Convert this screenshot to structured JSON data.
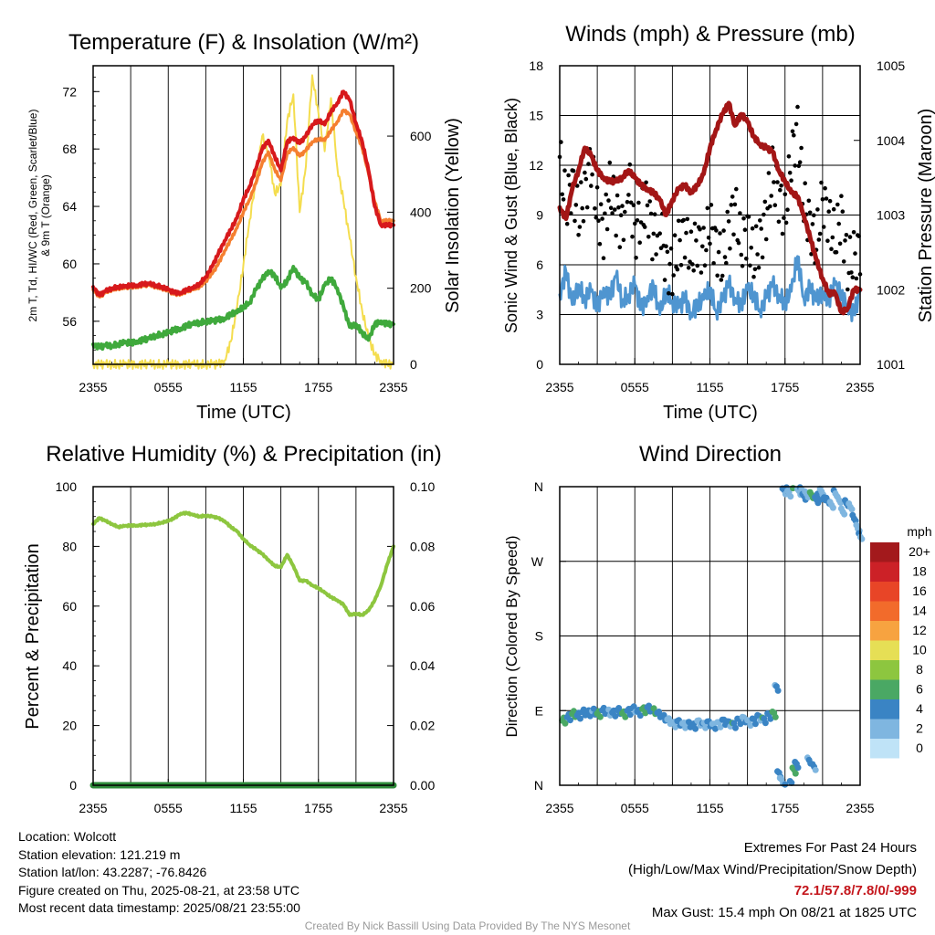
{
  "colors": {
    "t2m": "#d7191c",
    "hiwc": "#2db24b",
    "td": "#3fa93c",
    "t9m": "#f57f30",
    "solar": "#f4dd4f",
    "wind": "#4f95d0",
    "gust": "#000000",
    "pressure": "#a31616",
    "rh": "#8dc63f",
    "precip": "#2e8b3a"
  },
  "panels": {
    "temp": {
      "title": "Temperature (F) & Insolation (W/m²)",
      "ylabel_lines": [
        "2m T, Td, HI/WC (Red, Green, Scarlet/Blue)",
        "& 9m T (Orange)"
      ],
      "y2label": "Solar Insolation (Yellow)",
      "xlabel": "Time (UTC)",
      "yticks": [
        "56",
        "60",
        "64",
        "68",
        "72"
      ],
      "y2ticks": [
        "0",
        "200",
        "400",
        "600"
      ],
      "xticks": [
        "2355",
        "0555",
        "1155",
        "1755",
        "2355"
      ]
    },
    "wind": {
      "title": "Winds (mph) & Pressure (mb)",
      "ylabel": "Sonic Wind & Gust (Blue, Black)",
      "y2label": "Station Pressure (Maroon)",
      "xlabel": "Time (UTC)",
      "yticks": [
        "0",
        "3",
        "6",
        "9",
        "12",
        "15",
        "18"
      ],
      "y2ticks": [
        "1001",
        "1002",
        "1003",
        "1004",
        "1005"
      ],
      "xticks": [
        "2355",
        "0555",
        "1155",
        "1755",
        "2355"
      ]
    },
    "rh": {
      "title": "Relative Humidity (%) & Precipitation (in)",
      "ylabel": "Percent & Precipitation",
      "yticks": [
        "0",
        "20",
        "40",
        "60",
        "80",
        "100"
      ],
      "y2ticks": [
        "0.00",
        "0.02",
        "0.04",
        "0.06",
        "0.08",
        "0.10"
      ],
      "xticks": [
        "2355",
        "0555",
        "1155",
        "1755",
        "2355"
      ]
    },
    "dir": {
      "title": "Wind Direction",
      "ylabel": "Direction (Colored By Speed)",
      "yticks": [
        "N",
        "E",
        "S",
        "W",
        "N"
      ],
      "xticks": [
        "2355",
        "0555",
        "1155",
        "1755",
        "2355"
      ],
      "legend_title": "mph",
      "legend_labels": [
        "20+",
        "18",
        "16",
        "14",
        "12",
        "10",
        "8",
        "6",
        "4",
        "2",
        "0"
      ],
      "legend_colors": [
        "#a3191c",
        "#cc2127",
        "#e84527",
        "#f26b2b",
        "#f7a340",
        "#e6df55",
        "#8dc63f",
        "#4aa864",
        "#3a84c4",
        "#7fb6e0",
        "#bfe3f7"
      ]
    }
  },
  "chart_data": [
    {
      "type": "line",
      "title": "Temperature (F) & Insolation (W/m²)",
      "xlabel": "Time (UTC)",
      "ylabel": "2m T, Td, HI/WC (Red, Green, Scarlet/Blue) & 9m T (Orange)",
      "y2label": "Solar Insolation (Yellow)",
      "ylim": [
        53,
        73.8
      ],
      "y2lim": [
        0,
        785
      ],
      "xlim": [
        0,
        24
      ],
      "x": [
        0,
        0.5,
        1,
        1.5,
        2,
        2.5,
        3,
        3.5,
        4,
        4.5,
        5,
        5.5,
        6,
        6.5,
        7,
        7.5,
        8,
        8.5,
        9,
        9.5,
        10,
        10.5,
        11,
        11.5,
        12,
        12.5,
        13,
        13.5,
        14,
        14.5,
        15,
        15.5,
        16,
        16.5,
        17,
        17.5,
        18,
        18.5,
        19,
        19.5,
        20,
        20.5,
        21,
        21.5,
        22,
        22.5,
        23,
        23.5,
        24
      ],
      "series": [
        {
          "name": "2m T",
          "axis": "left",
          "color": "t2m",
          "values": [
            58.4,
            57.8,
            58.1,
            58.3,
            58.4,
            58.4,
            58.5,
            58.5,
            58.6,
            58.6,
            58.5,
            58.4,
            58.2,
            58.0,
            58.0,
            58.2,
            58.3,
            58.6,
            59.1,
            59.8,
            60.7,
            61.6,
            62.4,
            63.2,
            64.5,
            65.4,
            66.6,
            68.0,
            68.6,
            67.5,
            66.5,
            68.5,
            68.8,
            68.4,
            68.9,
            69.7,
            70.0,
            69.7,
            70.6,
            71.2,
            72.0,
            71.4,
            69.8,
            68.5,
            66.5,
            64.0,
            62.7,
            62.7,
            62.7
          ]
        },
        {
          "name": "9m T",
          "axis": "left",
          "color": "t9m",
          "values": [
            58.2,
            57.7,
            58.0,
            58.2,
            58.3,
            58.3,
            58.4,
            58.4,
            58.5,
            58.5,
            58.4,
            58.3,
            58.1,
            57.9,
            57.9,
            58.1,
            58.2,
            58.4,
            58.8,
            59.3,
            60.0,
            60.9,
            61.7,
            62.5,
            63.6,
            64.5,
            65.6,
            67.0,
            67.8,
            66.6,
            65.8,
            67.7,
            68.1,
            67.5,
            67.9,
            68.5,
            68.7,
            68.6,
            69.3,
            69.9,
            70.7,
            70.4,
            69.2,
            68.1,
            66.3,
            64.3,
            63.0,
            63.0,
            63.0
          ]
        },
        {
          "name": "Td",
          "axis": "left",
          "color": "td",
          "values": [
            54.4,
            54.2,
            54.3,
            54.3,
            54.4,
            54.5,
            54.5,
            54.6,
            54.7,
            54.8,
            55.0,
            55.1,
            55.2,
            55.4,
            55.5,
            55.7,
            55.8,
            55.9,
            56.0,
            56.0,
            56.1,
            56.2,
            56.5,
            56.6,
            57.0,
            57.3,
            58.2,
            58.9,
            59.5,
            59.2,
            58.3,
            58.8,
            59.8,
            59.0,
            58.7,
            57.9,
            57.5,
            58.5,
            59.0,
            58.3,
            57.0,
            55.6,
            55.8,
            55.2,
            54.7,
            55.8,
            56.0,
            55.8,
            55.8
          ]
        },
        {
          "name": "Solar Insolation",
          "axis": "right",
          "color": "solar",
          "values": [
            0,
            0,
            0,
            0,
            0,
            0,
            0,
            0,
            0,
            0,
            0,
            0,
            0,
            0,
            0,
            0,
            0,
            0,
            0,
            0,
            0,
            10,
            60,
            150,
            260,
            380,
            480,
            600,
            560,
            450,
            470,
            640,
            710,
            400,
            520,
            760,
            660,
            560,
            700,
            520,
            430,
            330,
            230,
            140,
            70,
            25,
            10,
            0,
            0
          ]
        }
      ]
    },
    {
      "type": "line",
      "title": "Winds (mph) & Pressure (mb)",
      "xlabel": "Time (UTC)",
      "ylabel": "Sonic Wind & Gust (Blue, Black)",
      "y2label": "Station Pressure (Maroon)",
      "ylim": [
        0,
        18
      ],
      "y2lim": [
        1001,
        1005
      ],
      "xlim": [
        0,
        24
      ],
      "x": [
        0,
        0.5,
        1,
        1.5,
        2,
        2.5,
        3,
        3.5,
        4,
        4.5,
        5,
        5.5,
        6,
        6.5,
        7,
        7.5,
        8,
        8.5,
        9,
        9.5,
        10,
        10.5,
        11,
        11.5,
        12,
        12.5,
        13,
        13.5,
        14,
        14.5,
        15,
        15.5,
        16,
        16.5,
        17,
        17.5,
        18,
        18.5,
        19,
        19.5,
        20,
        20.5,
        21,
        21.5,
        22,
        22.5,
        23,
        23.5,
        24
      ],
      "series": [
        {
          "name": "Station Pressure",
          "axis": "right",
          "color": "pressure",
          "values": [
            1003.1,
            1002.95,
            1003.35,
            1003.6,
            1003.9,
            1003.8,
            1003.6,
            1003.5,
            1003.45,
            1003.45,
            1003.5,
            1003.6,
            1003.5,
            1003.4,
            1003.35,
            1003.3,
            1003.2,
            1003.0,
            1003.2,
            1003.35,
            1003.4,
            1003.3,
            1003.4,
            1003.55,
            1003.9,
            1004.15,
            1004.35,
            1004.5,
            1004.2,
            1004.35,
            1004.25,
            1004.05,
            1003.95,
            1003.9,
            1003.85,
            1003.6,
            1003.45,
            1003.3,
            1003.25,
            1003.0,
            1002.7,
            1002.4,
            1002.15,
            1001.95,
            1001.95,
            1001.7,
            1001.75,
            1002.0,
            1002.0
          ]
        },
        {
          "name": "Sonic Wind",
          "axis": "left",
          "color": "wind",
          "values": [
            4.2,
            5.6,
            3.6,
            4.8,
            3.9,
            4.4,
            3.4,
            4.6,
            4.0,
            5.3,
            3.8,
            4.2,
            4.8,
            3.3,
            4.1,
            4.7,
            3.0,
            4.5,
            3.8,
            3.4,
            4.0,
            3.1,
            3.6,
            3.9,
            4.6,
            3.2,
            3.8,
            4.9,
            4.0,
            3.6,
            4.5,
            4.2,
            3.3,
            4.0,
            4.8,
            4.2,
            3.7,
            4.4,
            6.5,
            4.0,
            4.6,
            3.8,
            4.4,
            3.9,
            4.8,
            4.1,
            3.6,
            3.0,
            4.4
          ]
        },
        {
          "name": "Gust",
          "axis": "left",
          "color": "gust",
          "values": [
            12.5,
            9.5,
            11.0,
            8.8,
            10.3,
            12.2,
            9.1,
            8.0,
            10.6,
            9.2,
            8.3,
            11.2,
            7.8,
            8.9,
            9.6,
            7.5,
            8.6,
            6.1,
            5.5,
            7.2,
            8.0,
            6.4,
            7.5,
            6.8,
            8.5,
            7.1,
            6.0,
            8.3,
            9.6,
            7.0,
            8.2,
            6.3,
            7.4,
            9.0,
            11.5,
            10.2,
            8.7,
            12.5,
            14.3,
            9.6,
            8.5,
            7.2,
            10.0,
            8.8,
            7.5,
            9.1,
            5.8,
            6.5,
            7.0
          ]
        }
      ]
    },
    {
      "type": "line",
      "title": "Relative Humidity (%) & Precipitation (in)",
      "ylabel": "Percent & Precipitation",
      "ylim": [
        0,
        100
      ],
      "y2lim": [
        0,
        0.1
      ],
      "xlim": [
        0,
        24
      ],
      "x": [
        0,
        0.5,
        1,
        1.5,
        2,
        2.5,
        3,
        3.5,
        4,
        4.5,
        5,
        5.5,
        6,
        6.5,
        7,
        7.5,
        8,
        8.5,
        9,
        9.5,
        10,
        10.5,
        11,
        11.5,
        12,
        12.5,
        13,
        13.5,
        14,
        14.5,
        15,
        15.5,
        16,
        16.5,
        17,
        17.5,
        18,
        18.5,
        19,
        19.5,
        20,
        20.5,
        21,
        21.5,
        22,
        22.5,
        23,
        23.5,
        24
      ],
      "series": [
        {
          "name": "Relative Humidity",
          "axis": "left",
          "color": "rh",
          "values": [
            87.5,
            89.5,
            88.5,
            87.5,
            86.5,
            86.8,
            87.0,
            87.0,
            87.2,
            87.2,
            87.5,
            88.0,
            88.5,
            89.5,
            91.0,
            91.2,
            90.5,
            90.0,
            90.3,
            90.0,
            89.5,
            88.5,
            86.5,
            85.0,
            82.5,
            80.5,
            79.0,
            77.5,
            75.5,
            73.5,
            73.0,
            77.2,
            73.5,
            68.5,
            68.5,
            67.0,
            66.0,
            64.5,
            63.0,
            62.0,
            60.5,
            57.0,
            57.5,
            57.0,
            58.5,
            62.0,
            67.0,
            74.0,
            80.0
          ]
        },
        {
          "name": "Precipitation",
          "axis": "right",
          "color": "precip",
          "values": [
            0,
            0,
            0,
            0,
            0,
            0,
            0,
            0,
            0,
            0,
            0,
            0,
            0,
            0,
            0,
            0,
            0,
            0,
            0,
            0,
            0,
            0,
            0,
            0,
            0,
            0,
            0,
            0,
            0,
            0,
            0,
            0,
            0,
            0,
            0,
            0,
            0,
            0,
            0,
            0,
            0,
            0,
            0,
            0,
            0,
            0,
            0,
            0,
            0
          ]
        }
      ]
    },
    {
      "type": "scatter",
      "title": "Wind Direction",
      "ylabel": "Direction (Colored By Speed)",
      "xlim": [
        0,
        24
      ],
      "ylim": [
        0,
        360
      ],
      "x": [
        0.2,
        0.6,
        1.0,
        1.4,
        1.8,
        2.2,
        2.6,
        3.0,
        3.4,
        3.8,
        4.2,
        4.6,
        5.0,
        5.4,
        5.8,
        6.2,
        6.6,
        7.0,
        7.4,
        7.8,
        8.2,
        8.6,
        9.0,
        9.4,
        9.8,
        10.2,
        10.6,
        11.0,
        11.4,
        11.8,
        12.2,
        12.6,
        13.0,
        13.4,
        13.8,
        14.2,
        14.6,
        15.0,
        15.4,
        15.8,
        16.2,
        16.6,
        17.0,
        17.2,
        17.4,
        17.6,
        17.8,
        18.0,
        18.2,
        18.4,
        18.6,
        18.8,
        19.0,
        19.2,
        19.4,
        19.6,
        19.8,
        20.0,
        20.2,
        20.4,
        20.6,
        20.8,
        21.0,
        21.3,
        21.6,
        21.9,
        22.2,
        22.5,
        22.8,
        23.1,
        23.4,
        23.7,
        23.9
      ],
      "series": [
        {
          "name": "Wind Direction",
          "values": [
            78,
            82,
            86,
            84,
            88,
            87,
            89,
            86,
            90,
            88,
            87,
            90,
            86,
            89,
            92,
            88,
            91,
            93,
            90,
            86,
            82,
            78,
            74,
            76,
            73,
            74,
            72,
            76,
            73,
            75,
            72,
            74,
            77,
            75,
            73,
            78,
            80,
            76,
            78,
            82,
            79,
            84,
            86,
            118,
            14,
            6,
            355,
            358,
            352,
            2,
            18,
            25,
            354,
            356,
            348,
            351,
            30,
            350,
            22,
            344,
            348,
            354,
            347,
            343,
            338,
            352,
            344,
            330,
            340,
            336,
            322,
            310,
            300
          ]
        },
        {
          "name": "Wind Speed (mph)",
          "values": [
            6,
            4,
            6,
            4,
            5,
            4,
            3,
            5,
            4,
            3,
            5,
            4,
            6,
            4,
            3,
            4,
            6,
            4,
            5,
            3,
            4,
            2,
            3,
            4,
            2,
            3,
            4,
            2,
            3,
            4,
            3,
            2,
            4,
            3,
            5,
            4,
            3,
            2,
            4,
            3,
            5,
            4,
            6,
            3,
            4,
            2,
            3,
            4,
            3,
            5,
            6,
            4,
            2,
            3,
            4,
            2,
            3,
            6,
            3,
            4,
            4,
            2,
            3,
            4,
            2,
            3,
            2,
            3,
            4,
            2,
            3,
            2,
            3
          ]
        }
      ]
    }
  ],
  "info_left": [
    "Location: Wolcott",
    "Station elevation: 121.219 m",
    "Station lat/lon: 43.2287; -76.8426",
    "Figure created on Thu, 2025-08-21, at 23:58 UTC",
    "Most recent data timestamp: 2025/08/21 23:55:00"
  ],
  "extremes": {
    "title": "Extremes For Past 24 Hours",
    "subtitle": "(High/Low/Max Wind/Precipitation/Snow Depth)",
    "values": "72.1/57.8/7.8/0/-999",
    "max_gust": "Max Gust: 15.4 mph On 08/21 at 1825 UTC"
  },
  "credit": "Created By Nick Bassill Using Data Provided By The NYS Mesonet"
}
